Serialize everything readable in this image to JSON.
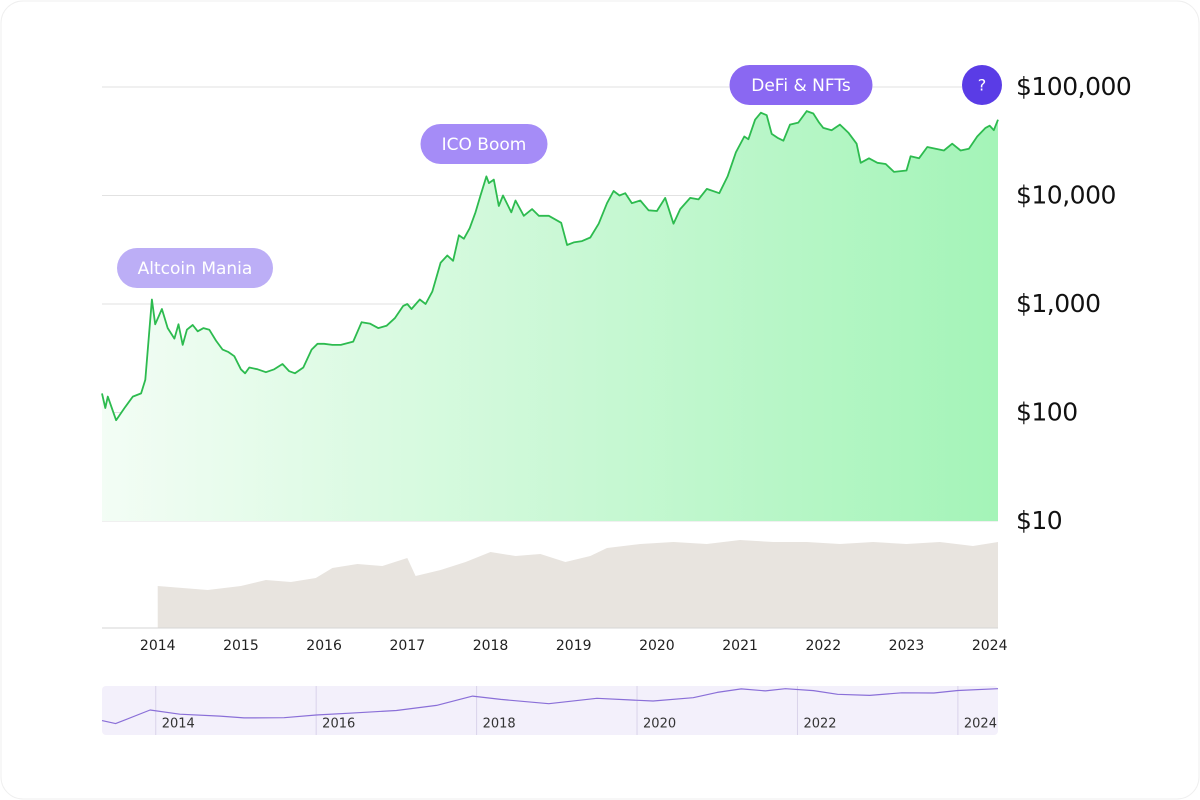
{
  "help_button": "?",
  "chart_data": [
    {
      "type": "line",
      "log_scale": true,
      "grid": true,
      "color": "#2dbb4f",
      "xlim": [
        2013.33,
        2024.1
      ],
      "xticks": [
        2014,
        2015,
        2016,
        2017,
        2018,
        2019,
        2020,
        2021,
        2022,
        2023,
        2024
      ],
      "ylim": [
        10,
        100000
      ],
      "yticks": [
        {
          "value": 10,
          "label": "$10"
        },
        {
          "value": 100,
          "label": "$100"
        },
        {
          "value": 1000,
          "label": "$1,000"
        },
        {
          "value": 10000,
          "label": "$10,000"
        },
        {
          "value": 100000,
          "label": "$100,000"
        }
      ],
      "annotations": [
        {
          "text": "Altcoin Mania",
          "color": "#bcaef6"
        },
        {
          "text": "ICO Boom",
          "color": "#a58cf7"
        },
        {
          "text": "DeFi & NFTs",
          "color": "#8a68f2"
        }
      ],
      "x": [
        2013.33,
        2013.37,
        2013.4,
        2013.5,
        2013.6,
        2013.7,
        2013.8,
        2013.85,
        2013.93,
        2013.97,
        2014.05,
        2014.12,
        2014.2,
        2014.25,
        2014.3,
        2014.35,
        2014.42,
        2014.48,
        2014.55,
        2014.62,
        2014.7,
        2014.78,
        2014.85,
        2014.92,
        2015.0,
        2015.05,
        2015.1,
        2015.2,
        2015.3,
        2015.4,
        2015.5,
        2015.58,
        2015.65,
        2015.75,
        2015.85,
        2015.92,
        2016.0,
        2016.1,
        2016.2,
        2016.35,
        2016.45,
        2016.55,
        2016.65,
        2016.75,
        2016.85,
        2016.95,
        2017.0,
        2017.05,
        2017.15,
        2017.22,
        2017.3,
        2017.4,
        2017.48,
        2017.55,
        2017.62,
        2017.68,
        2017.75,
        2017.82,
        2017.88,
        2017.95,
        2017.98,
        2018.04,
        2018.1,
        2018.15,
        2018.25,
        2018.3,
        2018.4,
        2018.5,
        2018.58,
        2018.7,
        2018.85,
        2018.92,
        2019.0,
        2019.1,
        2019.2,
        2019.3,
        2019.4,
        2019.48,
        2019.55,
        2019.62,
        2019.7,
        2019.8,
        2019.9,
        2020.0,
        2020.1,
        2020.2,
        2020.28,
        2020.4,
        2020.5,
        2020.6,
        2020.75,
        2020.85,
        2020.95,
        2021.05,
        2021.1,
        2021.18,
        2021.25,
        2021.32,
        2021.38,
        2021.45,
        2021.52,
        2021.6,
        2021.7,
        2021.8,
        2021.88,
        2021.95,
        2022.0,
        2022.1,
        2022.2,
        2022.3,
        2022.4,
        2022.45,
        2022.55,
        2022.65,
        2022.75,
        2022.85,
        2023.0,
        2023.05,
        2023.15,
        2023.25,
        2023.35,
        2023.45,
        2023.55,
        2023.65,
        2023.75,
        2023.85,
        2023.95,
        2024.0,
        2024.05,
        2024.1
      ],
      "values": [
        150,
        110,
        140,
        85,
        110,
        140,
        150,
        200,
        1100,
        650,
        900,
        600,
        480,
        650,
        420,
        580,
        640,
        560,
        600,
        580,
        460,
        380,
        360,
        330,
        250,
        230,
        260,
        250,
        235,
        250,
        280,
        240,
        230,
        260,
        380,
        430,
        430,
        420,
        420,
        450,
        680,
        660,
        600,
        630,
        740,
        960,
        1000,
        900,
        1100,
        1000,
        1300,
        2400,
        2800,
        2500,
        4300,
        4000,
        5000,
        7000,
        10000,
        15000,
        13000,
        14000,
        8000,
        10000,
        7000,
        9000,
        6500,
        7500,
        6500,
        6500,
        5600,
        3500,
        3700,
        3800,
        4100,
        5500,
        8500,
        11000,
        10000,
        10500,
        8500,
        9000,
        7300,
        7200,
        9500,
        5500,
        7500,
        9500,
        9200,
        11500,
        10500,
        15000,
        25000,
        35000,
        33000,
        50000,
        58000,
        55000,
        37000,
        34000,
        32000,
        45000,
        47000,
        60000,
        57000,
        47000,
        42000,
        40000,
        45000,
        38000,
        30000,
        20000,
        22000,
        20000,
        19500,
        16500,
        17000,
        23000,
        22000,
        28000,
        27000,
        26000,
        30000,
        26000,
        27000,
        35000,
        42000,
        44000,
        40000,
        50000
      ]
    },
    {
      "type": "area",
      "color": "#e8e4df",
      "xlim": [
        2013.33,
        2024.1
      ],
      "ylim": [
        0,
        100
      ],
      "x": [
        2014.0,
        2014.3,
        2014.6,
        2015.0,
        2015.3,
        2015.6,
        2015.9,
        2016.1,
        2016.4,
        2016.7,
        2017.0,
        2017.1,
        2017.4,
        2017.7,
        2018.0,
        2018.3,
        2018.6,
        2018.9,
        2019.2,
        2019.4,
        2019.8,
        2020.2,
        2020.6,
        2021.0,
        2021.4,
        2021.8,
        2022.2,
        2022.6,
        2023.0,
        2023.4,
        2023.8,
        2024.1
      ],
      "values": [
        42,
        40,
        38,
        42,
        48,
        46,
        50,
        60,
        64,
        62,
        70,
        52,
        58,
        66,
        76,
        72,
        74,
        66,
        72,
        80,
        84,
        86,
        84,
        88,
        86,
        86,
        84,
        86,
        84,
        86,
        82,
        86
      ]
    },
    {
      "type": "line",
      "log_scale": true,
      "color": "#8a6fd8",
      "xlim": [
        2013.33,
        2024.5
      ],
      "xticks": [
        2014,
        2016,
        2018,
        2020,
        2022,
        2024
      ],
      "ylim": [
        10,
        100000
      ],
      "x": [
        2013.33,
        2013.5,
        2013.93,
        2014.3,
        2014.8,
        2015.1,
        2015.6,
        2016.0,
        2016.5,
        2017.0,
        2017.5,
        2017.95,
        2018.3,
        2018.9,
        2019.5,
        2019.9,
        2020.2,
        2020.7,
        2021.0,
        2021.3,
        2021.6,
        2021.85,
        2022.2,
        2022.5,
        2022.9,
        2023.3,
        2023.7,
        2024.0,
        2024.5
      ],
      "values": [
        150,
        85,
        1100,
        500,
        350,
        250,
        260,
        430,
        650,
        1000,
        2600,
        15000,
        8000,
        3600,
        10000,
        7300,
        6000,
        11000,
        30000,
        58000,
        40000,
        60000,
        42000,
        21000,
        17000,
        28000,
        27000,
        43000,
        60000
      ]
    }
  ]
}
